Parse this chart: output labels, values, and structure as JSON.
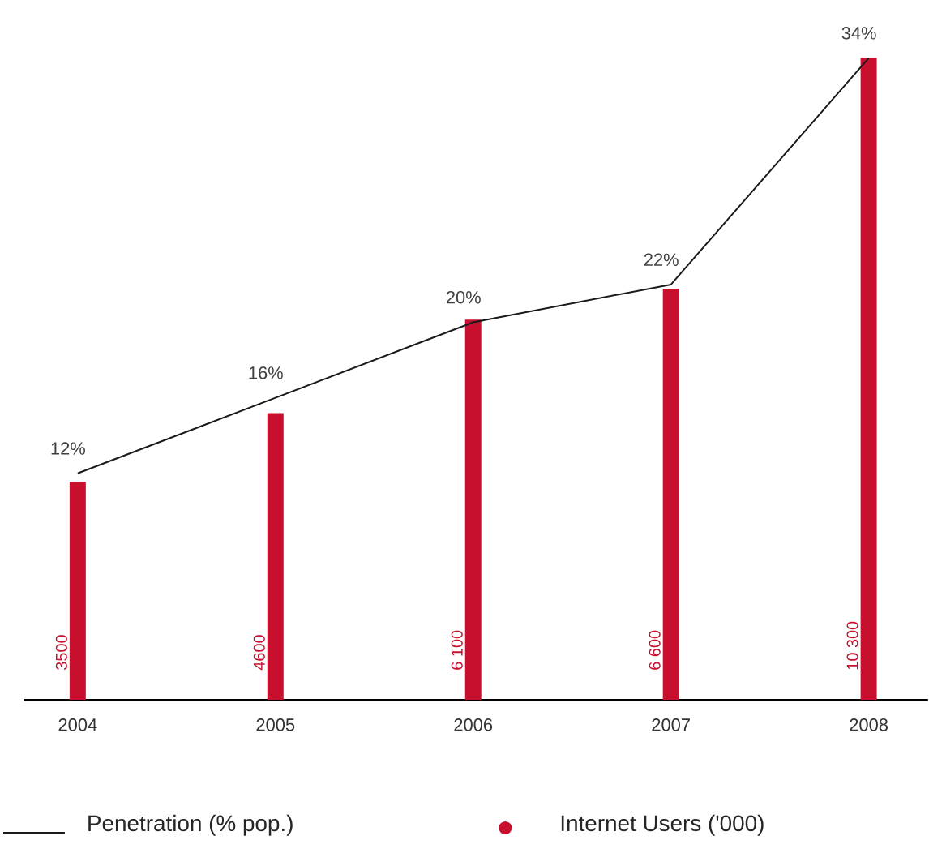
{
  "chart_data": {
    "type": "bar",
    "categories": [
      "2004",
      "2005",
      "2006",
      "2007",
      "2008"
    ],
    "legend": "bottom",
    "series": [
      {
        "name": "Penetration (% pop.)",
        "type": "line",
        "axis": "y2",
        "color": "#1a1a1a",
        "values": [
          12,
          16,
          20,
          22,
          34
        ],
        "value_labels": [
          "12%",
          "16%",
          "20%",
          "22%",
          "34%"
        ]
      },
      {
        "name": "Internet Users ('000)",
        "color": "#c8102e",
        "values": [
          3500,
          4600,
          6100,
          6600,
          10300
        ],
        "value_labels": [
          "3500",
          "4600",
          "6 100",
          "6 600",
          "10 300"
        ]
      }
    ]
  }
}
